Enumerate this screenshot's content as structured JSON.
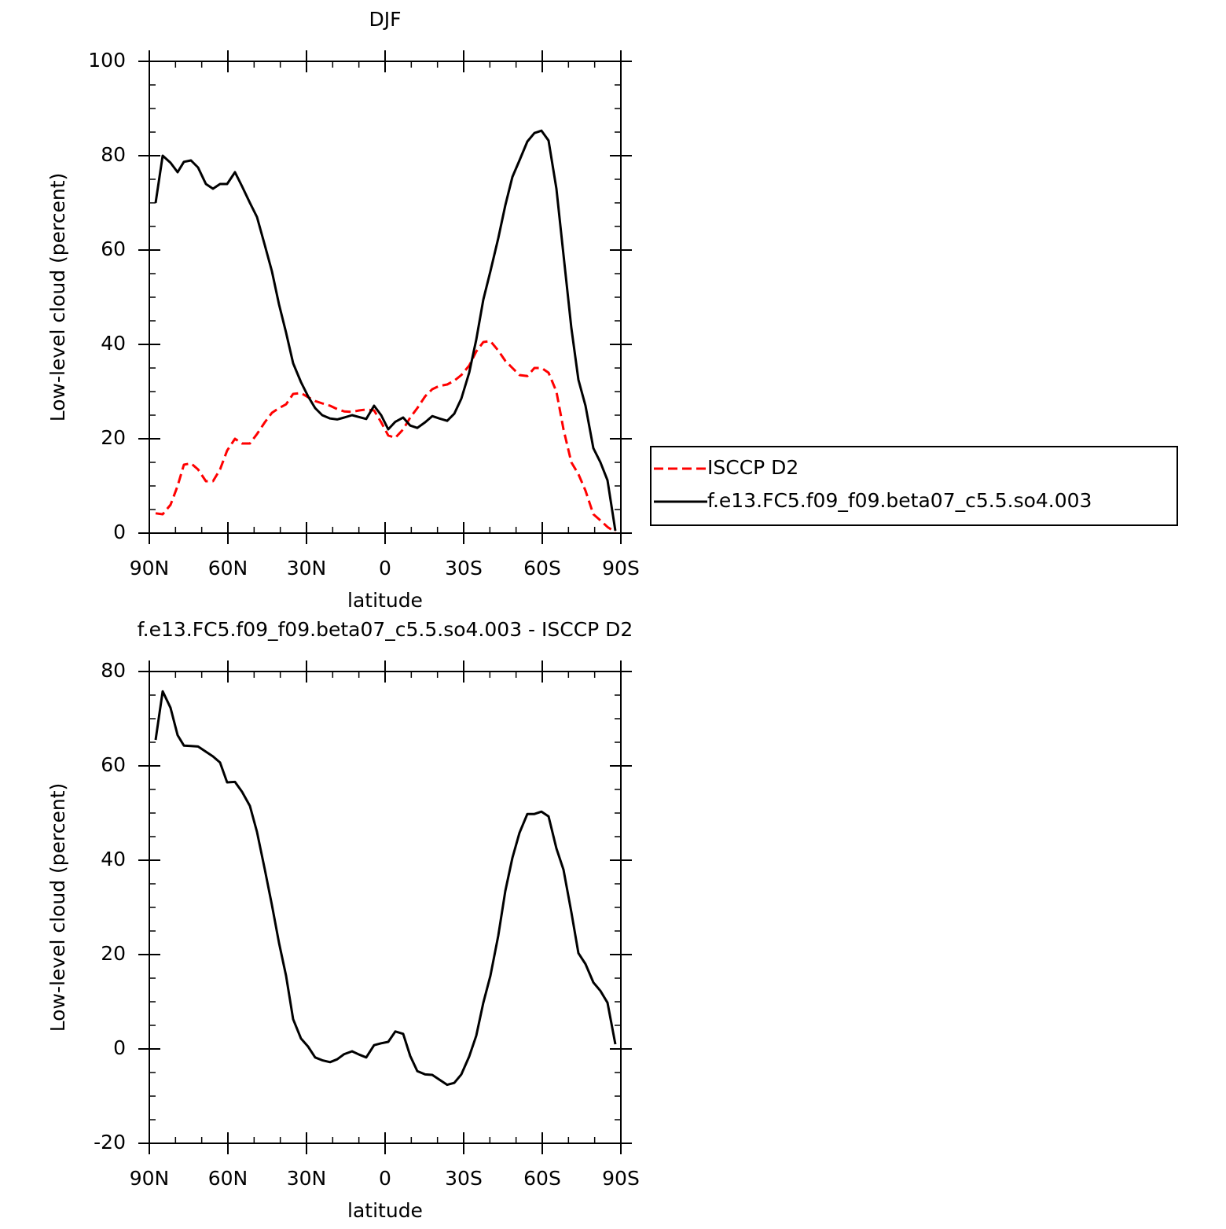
{
  "chart_data": [
    {
      "type": "line",
      "title": "DJF",
      "xlabel": "latitude",
      "ylabel": "Low-level cloud (percent)",
      "x": [
        87.6,
        84.9,
        81.9,
        79.2,
        76.8,
        74.1,
        71.4,
        68.4,
        65.7,
        63.0,
        60.3,
        57.3,
        54.6,
        51.6,
        48.9,
        45.9,
        43.2,
        40.5,
        37.8,
        35.1,
        32.1,
        29.4,
        26.7,
        24.0,
        21.0,
        18.3,
        15.6,
        12.6,
        9.9,
        7.2,
        4.2,
        1.5,
        -1.2,
        -3.9,
        -6.9,
        -9.6,
        -12.3,
        -15.3,
        -18.0,
        -20.7,
        -23.7,
        -26.4,
        -29.1,
        -32.1,
        -34.8,
        -37.5,
        -40.2,
        -43.2,
        -45.9,
        -48.6,
        -51.3,
        -54.3,
        -57.0,
        -59.7,
        -62.4,
        -65.4,
        -68.1,
        -71.1,
        -73.8,
        -76.5,
        -79.5,
        -82.2,
        -84.9,
        -87.9
      ],
      "series": [
        {
          "name": "ISCCP D2",
          "color": "#ff0000",
          "dashed": true,
          "values": [
            4.2,
            4,
            6,
            10,
            14.5,
            14.8,
            13.5,
            11,
            11,
            13.5,
            17.5,
            20,
            19,
            19,
            21,
            23.5,
            25.5,
            26.5,
            27.3,
            29.5,
            29.7,
            28.8,
            28,
            27.5,
            27,
            26.3,
            25.8,
            25.7,
            26,
            26.2,
            26,
            23.5,
            20.7,
            20.2,
            22,
            24.5,
            26.5,
            29,
            30.5,
            31.2,
            31.5,
            32.3,
            33.5,
            35.5,
            38.5,
            40.5,
            40.7,
            38.7,
            36.5,
            35,
            33.5,
            33.3,
            35,
            35,
            34,
            30,
            22,
            15,
            12.5,
            9,
            4,
            2.7,
            1.3,
            0.2
          ]
        },
        {
          "name": "f.e13.FC5.f09_f09.beta07_c5.5.so4.003",
          "color": "#000000",
          "dashed": false,
          "values": [
            70,
            80,
            78.5,
            76.5,
            78.7,
            79,
            77.5,
            74,
            73,
            74,
            74,
            76.5,
            73.5,
            70,
            67,
            61,
            55.5,
            48.5,
            42.5,
            36,
            32,
            29,
            26.5,
            25,
            24.3,
            24.1,
            24.5,
            25,
            24.6,
            24.2,
            27,
            25,
            22,
            23.6,
            24.5,
            22.8,
            22.3,
            23.5,
            24.8,
            24.3,
            23.8,
            25.3,
            28.5,
            34,
            41,
            49.5,
            55.5,
            62.5,
            69.5,
            75.5,
            79,
            83,
            84.8,
            85.3,
            83.2,
            73,
            59,
            43.5,
            32.5,
            27,
            18,
            15,
            11.2,
            0.5
          ]
        }
      ],
      "xlim": [
        90,
        -90
      ],
      "xticks": [
        {
          "value": 90,
          "label": "90N"
        },
        {
          "value": 60,
          "label": "60N"
        },
        {
          "value": 30,
          "label": "30N"
        },
        0,
        {
          "value": -30,
          "label": "30S"
        },
        {
          "value": -60,
          "label": "60S"
        },
        {
          "value": -90,
          "label": "90S"
        }
      ],
      "ylim": [
        0,
        100
      ],
      "yticks": [
        0,
        20,
        40,
        60,
        80,
        100
      ],
      "legend": "outside-right"
    },
    {
      "type": "line",
      "title": "f.e13.FC5.f09_f09.beta07_c5.5.so4.003 - ISCCP D2",
      "xlabel": "latitude",
      "ylabel": "Low-level cloud (percent)",
      "x": [
        87.6,
        84.9,
        81.9,
        79.2,
        76.8,
        74.1,
        71.4,
        68.4,
        65.7,
        63.0,
        60.3,
        57.3,
        54.6,
        51.6,
        48.9,
        45.9,
        43.2,
        40.5,
        37.8,
        35.1,
        32.1,
        29.4,
        26.7,
        24.0,
        21.0,
        18.3,
        15.6,
        12.6,
        9.9,
        7.2,
        4.2,
        1.5,
        -1.2,
        -3.9,
        -6.9,
        -9.6,
        -12.3,
        -15.3,
        -18.0,
        -20.7,
        -23.7,
        -26.4,
        -29.1,
        -32.1,
        -34.8,
        -37.5,
        -40.2,
        -43.2,
        -45.9,
        -48.6,
        -51.3,
        -54.3,
        -57.0,
        -59.7,
        -62.4,
        -65.4,
        -68.1,
        -71.1,
        -73.8,
        -76.5,
        -79.5,
        -82.2,
        -84.9,
        -87.9
      ],
      "series": [
        {
          "color": "#000000",
          "dashed": false,
          "values": [
            65.5,
            75.8,
            72.3,
            66.5,
            64.3,
            64.2,
            64.1,
            63,
            62,
            60.7,
            56.5,
            56.6,
            54.5,
            51.5,
            46,
            38,
            30.5,
            22.5,
            15.5,
            6.3,
            2.2,
            0.5,
            -1.8,
            -2.4,
            -2.8,
            -2.2,
            -1.1,
            -0.5,
            -1.2,
            -1.8,
            0.8,
            1.2,
            1.5,
            3.7,
            3.2,
            -1.5,
            -4.7,
            -5.4,
            -5.5,
            -6.5,
            -7.6,
            -7.2,
            -5.4,
            -1.6,
            2.8,
            9.8,
            15.5,
            24,
            33.5,
            40.5,
            45.8,
            49.8,
            49.8,
            50.3,
            49.3,
            42.5,
            38,
            29,
            20.3,
            18,
            14.1,
            12.3,
            9.8,
            1
          ]
        }
      ],
      "xlim": [
        90,
        -90
      ],
      "xticks": [
        {
          "value": 90,
          "label": "90N"
        },
        {
          "value": 60,
          "label": "60N"
        },
        {
          "value": 30,
          "label": "30N"
        },
        0,
        {
          "value": -30,
          "label": "30S"
        },
        {
          "value": -60,
          "label": "60S"
        },
        {
          "value": -90,
          "label": "90S"
        }
      ],
      "ylim": [
        -20,
        80
      ],
      "yticks": [
        -20,
        0,
        20,
        40,
        60,
        80
      ]
    }
  ]
}
